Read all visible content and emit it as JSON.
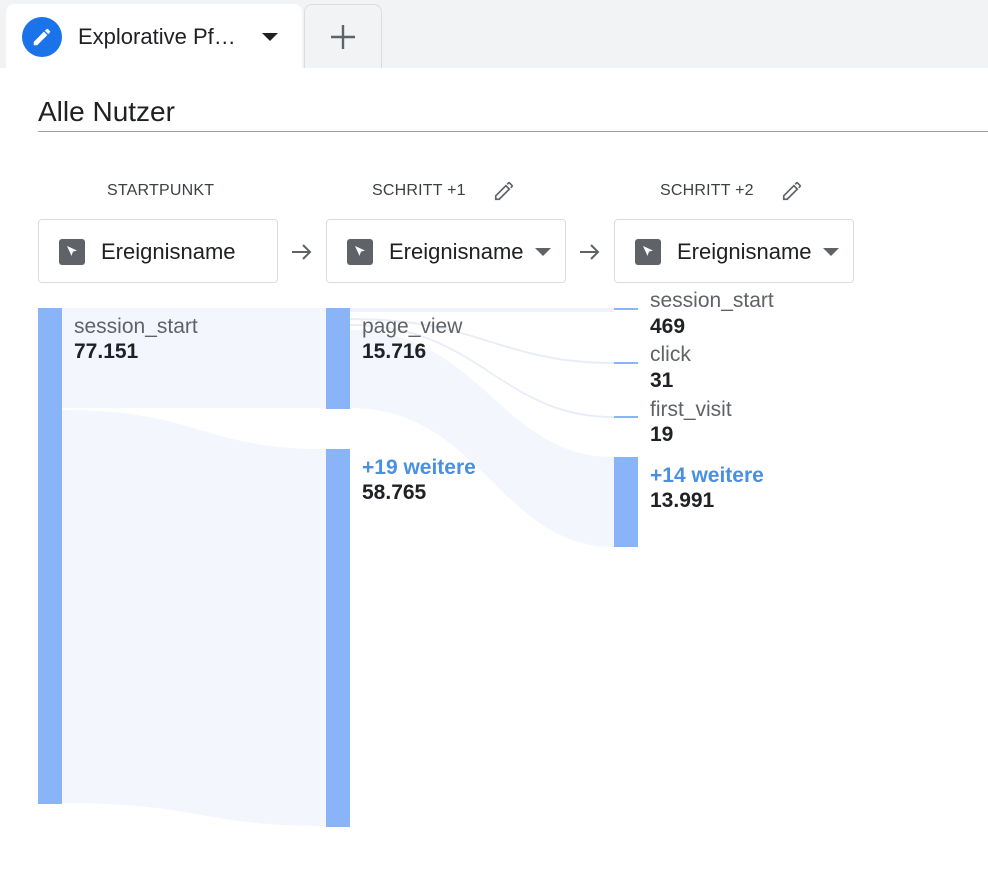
{
  "tab": {
    "title": "Explorative Pf…"
  },
  "segment": {
    "title": "Alle Nutzer"
  },
  "steps": [
    {
      "header": "STARTPUNKT",
      "selector": "Ereignisname"
    },
    {
      "header": "SCHRITT +1",
      "selector": "Ereignisname"
    },
    {
      "header": "SCHRITT +2",
      "selector": "Ereignisname"
    }
  ],
  "nodes": {
    "start": {
      "label": "session_start",
      "value": "77.151"
    },
    "step1": [
      {
        "label": "page_view",
        "value": "15.716"
      },
      {
        "label": "+19 weitere",
        "value": "58.765"
      }
    ],
    "step2": [
      {
        "label": "session_start",
        "value": "469"
      },
      {
        "label": "click",
        "value": "31"
      },
      {
        "label": "first_visit",
        "value": "19"
      },
      {
        "label": "+14 weitere",
        "value": "13.991"
      }
    ]
  },
  "colors": {
    "accent": "#1a73e8",
    "node_bar": "#8ab4f8",
    "flow": "#f3f6fd",
    "more_link": "#4a90e2"
  },
  "icons": [
    "pencil-icon",
    "plus-icon",
    "cursor-icon",
    "arrow-right-icon",
    "caret-down-icon"
  ]
}
